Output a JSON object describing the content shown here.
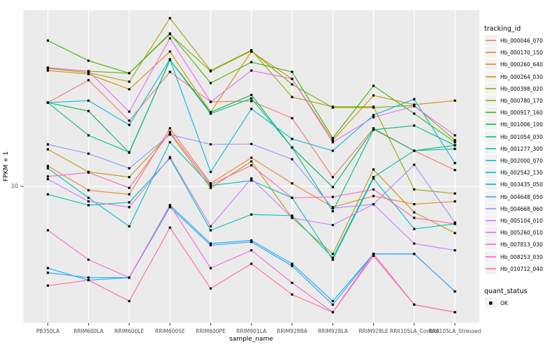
{
  "window": {
    "description": "ggplot2 multi-series log-scale line chart of FPKM values per rubber clone sample"
  },
  "axes": {
    "y_label": "FPKM + 1",
    "y_tick": "10",
    "x_label": "sample_name"
  },
  "legend": {
    "tracking_title": "tracking_id",
    "quant_title": "quant_status",
    "quant_items": [
      {
        "label": "OK",
        "shape": "filled-square",
        "color": "#000000"
      }
    ]
  },
  "colors": {
    "page_bg": "#ffffff",
    "panel_bg": "#ebebeb",
    "grid": "#ffffff",
    "axis_text": "#4d4d4d",
    "tick_mark": "#333333",
    "legend_key_bg": "#f2f2f2",
    "point": "#000000"
  },
  "chart_data": {
    "type": "line",
    "yscale": "log10",
    "ylim_approx": [
      1.8,
      95
    ],
    "y_tick_labels": [
      "10"
    ],
    "grid": "major-only",
    "legend_position": "right",
    "point_shape": "filled-square",
    "point_color": "#000000",
    "xlabel": "sample_name",
    "ylabel": "FPKM + 1",
    "x_categories": [
      "PB350LA",
      "RRIM600LA",
      "RRIM600LE",
      "RRIM600SE",
      "RRIM600PE",
      "RRIM901LA",
      "RRIM928BA",
      "RRIM928LA",
      "RRIM928LE",
      "RRII105LA_Control",
      "RRII105LA_Stressed"
    ],
    "series": [
      {
        "name": "Hb_000046_070",
        "color": "#F8766D",
        "values": [
          30.2,
          40.6,
          23.8,
          45.3,
          30.5,
          30.8,
          24.6,
          11.3,
          21.5,
          16.0,
          12.4
        ]
      },
      {
        "name": "Hb_000170_150",
        "color": "#EA8331",
        "values": [
          13.1,
          9.5,
          9.0,
          21.5,
          10.4,
          14.6,
          10.4,
          7.6,
          8.8,
          7.9,
          8.2
        ]
      },
      {
        "name": "Hb_000260_640",
        "color": "#D89000",
        "values": [
          46.1,
          44.0,
          36.0,
          59.2,
          26.6,
          59.2,
          41.3,
          18.4,
          33.2,
          29.4,
          31.0
        ]
      },
      {
        "name": "Hb_000264_030",
        "color": "#C09B00",
        "values": [
          16.3,
          12.1,
          11.3,
          20.1,
          9.8,
          13.9,
          6.6,
          4.1,
          12.5,
          7.1,
          5.4
        ]
      },
      {
        "name": "Hb_000398_020",
        "color": "#A3A500",
        "values": [
          47.4,
          44.8,
          39.8,
          92.0,
          46.1,
          60.3,
          32.5,
          28.6,
          28.6,
          9.6,
          9.1
        ]
      },
      {
        "name": "Hb_000780_170",
        "color": "#7CAE00",
        "values": [
          47.9,
          45.7,
          44.5,
          74.5,
          45.7,
          59.8,
          38.4,
          28.3,
          28.3,
          29.1,
          18.4
        ]
      },
      {
        "name": "Hb_000917_160",
        "color": "#39B600",
        "values": [
          68.5,
          52.5,
          44.5,
          75.2,
          39.1,
          51.5,
          45.3,
          18.9,
          37.7,
          26.1,
          17.9
        ]
      },
      {
        "name": "Hb_001006_100",
        "color": "#00BB4E",
        "values": [
          30.2,
          27.0,
          15.6,
          53.0,
          26.6,
          33.4,
          16.7,
          9.9,
          21.3,
          16.0,
          17.2
        ]
      },
      {
        "name": "Hb_001054_030",
        "color": "#00BF7D",
        "values": [
          30.2,
          19.6,
          15.7,
          53.0,
          26.1,
          31.9,
          16.7,
          7.2,
          21.1,
          22.3,
          17.2
        ]
      },
      {
        "name": "Hb_001277_300",
        "color": "#00C1A3",
        "values": [
          9.0,
          7.8,
          8.1,
          14.5,
          5.6,
          6.9,
          6.8,
          3.9,
          11.3,
          16.0,
          16.4
        ]
      },
      {
        "name": "Hb_002000_070",
        "color": "#00BFC4",
        "values": [
          12.7,
          8.6,
          5.9,
          17.9,
          10.1,
          10.8,
          8.6,
          3.8,
          11.1,
          5.7,
          6.1
        ]
      },
      {
        "name": "Hb_002542_130",
        "color": "#00BAE0",
        "values": [
          30.2,
          31.0,
          22.5,
          53.5,
          12.1,
          27.8,
          18.7,
          16.0,
          25.6,
          31.6,
          13.6
        ]
      },
      {
        "name": "Hb_003435_050",
        "color": "#00B0F6",
        "values": [
          3.4,
          2.9,
          3.0,
          7.8,
          4.7,
          4.9,
          3.6,
          2.2,
          4.1,
          4.1,
          2.5
        ]
      },
      {
        "name": "Hb_004648_050",
        "color": "#35A2FF",
        "values": [
          3.2,
          3.0,
          3.0,
          7.6,
          4.6,
          4.8,
          3.5,
          2.1,
          4.1,
          4.1,
          2.5
        ]
      },
      {
        "name": "Hb_004668_060",
        "color": "#9590FF",
        "values": [
          17.4,
          15.4,
          12.7,
          19.8,
          17.4,
          17.5,
          14.3,
          7.5,
          7.9,
          13.3,
          6.2
        ]
      },
      {
        "name": "Hb_005104_010",
        "color": "#C77CFF",
        "values": [
          11.0,
          8.2,
          7.6,
          14.7,
          5.9,
          11.1,
          6.6,
          6.0,
          7.9,
          4.7,
          4.3
        ]
      },
      {
        "name": "Hb_005260_010",
        "color": "#E76BF3",
        "values": [
          47.9,
          45.7,
          26.8,
          70.5,
          30.5,
          46.1,
          41.3,
          17.9,
          24.9,
          28.8,
          19.6
        ]
      },
      {
        "name": "Hb_007813_030",
        "color": "#FA62DB",
        "values": [
          5.6,
          3.8,
          3.0,
          7.8,
          3.4,
          4.3,
          2.8,
          1.9,
          4.1,
          2.1,
          1.9
        ]
      },
      {
        "name": "Hb_008253_030",
        "color": "#FF62BC",
        "values": [
          11.4,
          12.0,
          9.8,
          20.5,
          10.2,
          13.2,
          8.6,
          8.7,
          9.6,
          6.6,
          6.1
        ]
      },
      {
        "name": "Hb_010712_040",
        "color": "#FF6A98",
        "values": [
          2.7,
          2.9,
          2.2,
          5.8,
          2.6,
          3.6,
          2.4,
          1.9,
          4.0,
          2.1,
          1.9
        ]
      }
    ]
  }
}
